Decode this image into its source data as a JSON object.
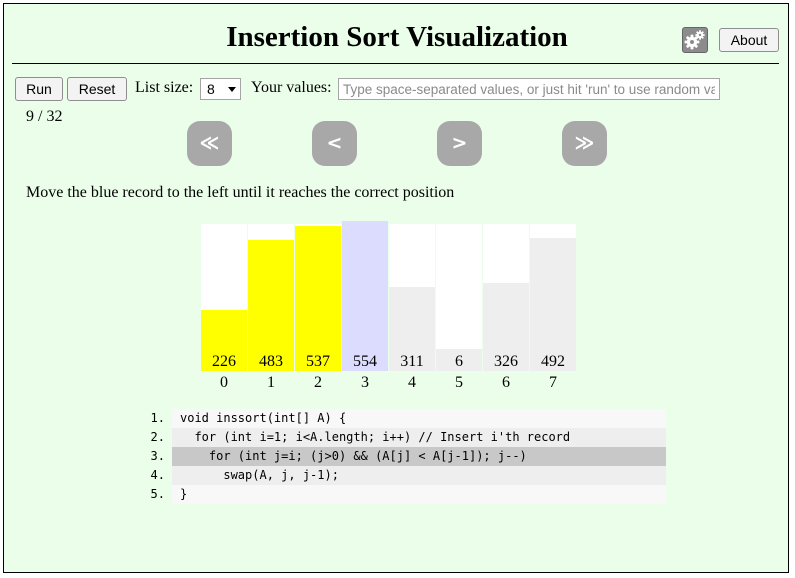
{
  "title": "Insertion Sort Visualization",
  "header": {
    "about_label": "About",
    "settings_icon": "gear-icon"
  },
  "controls": {
    "run_label": "Run",
    "reset_label": "Reset",
    "list_size_label": "List size:",
    "list_size_value": "8",
    "your_values_label": "Your values:",
    "values_placeholder": "Type space-separated values, or just hit 'run' to use random val",
    "values_value": ""
  },
  "step": "9 / 32",
  "nav": {
    "first": "≪",
    "prev": "<",
    "next": ">",
    "last": "≫"
  },
  "instruction": "Move the blue record to the left until it reaches the correct position",
  "colors": {
    "sorted": "#ffff00",
    "current": "#dcdcff",
    "unsorted": "#eeeeee",
    "background": "#eafeea"
  },
  "array": [
    {
      "index": "0",
      "value": "226",
      "state": "sorted"
    },
    {
      "index": "1",
      "value": "483",
      "state": "sorted"
    },
    {
      "index": "2",
      "value": "537",
      "state": "sorted"
    },
    {
      "index": "3",
      "value": "554",
      "state": "current"
    },
    {
      "index": "4",
      "value": "311",
      "state": "unsorted"
    },
    {
      "index": "5",
      "value": "6",
      "state": "unsorted"
    },
    {
      "index": "6",
      "value": "326",
      "state": "unsorted"
    },
    {
      "index": "7",
      "value": "492",
      "state": "unsorted"
    }
  ],
  "code": [
    {
      "num": "1.",
      "text": "void inssort(int[] A) {",
      "highlight": false
    },
    {
      "num": "2.",
      "text": "  for (int i=1; i<A.length; i++) // Insert i'th record",
      "highlight": false
    },
    {
      "num": "3.",
      "text": "    for (int j=i; (j>0) && (A[j] < A[j-1]); j--)",
      "highlight": true
    },
    {
      "num": "4.",
      "text": "      swap(A, j, j-1);",
      "highlight": false
    },
    {
      "num": "5.",
      "text": "}",
      "highlight": false
    }
  ]
}
